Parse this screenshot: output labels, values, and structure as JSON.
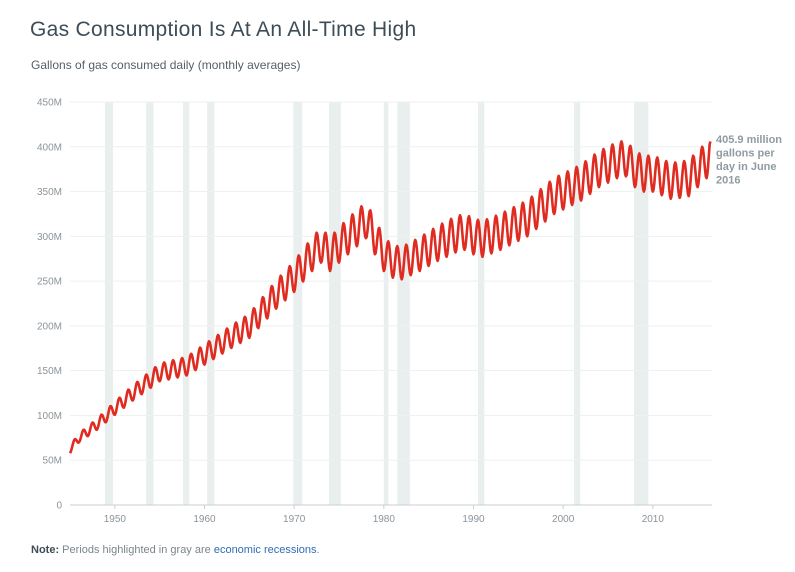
{
  "header": {
    "title": "Gas Consumption Is At An All-Time High",
    "subtitle": "Gallons of gas consumed daily (monthly averages)"
  },
  "note": {
    "label": "Note:",
    "text": "Periods highlighted in gray are",
    "link": "economic recessions",
    "end": "."
  },
  "colors": {
    "line": "#e02b20",
    "recession": "#e8efee",
    "grid": "#eef1f1",
    "annotation": "#8f9ba1"
  },
  "chart_data": {
    "type": "line",
    "title": "Gas Consumption Is At An All-Time High",
    "subtitle": "Gallons of gas consumed daily (monthly averages)",
    "xlim": [
      1945,
      2016.6
    ],
    "ylim": [
      0,
      450
    ],
    "y_unit": "M",
    "yticks": [
      0,
      50,
      100,
      150,
      200,
      250,
      300,
      350,
      400,
      450
    ],
    "ytick_labels": [
      "0",
      "50M",
      "100M",
      "150M",
      "200M",
      "250M",
      "300M",
      "350M",
      "400M",
      "450M"
    ],
    "xticks": [
      1950,
      1960,
      1970,
      1980,
      1990,
      2000,
      2010
    ],
    "xtick_labels": [
      "1950",
      "1960",
      "1970",
      "1980",
      "1990",
      "2000",
      "2010"
    ],
    "grid": true,
    "series": [
      {
        "name": "",
        "frequency": "monthly",
        "seasonal_amplitude_approx": 20,
        "trend": [
          [
            1945,
            62
          ],
          [
            1946,
            75
          ],
          [
            1948,
            90
          ],
          [
            1950,
            108
          ],
          [
            1952,
            125
          ],
          [
            1955,
            148
          ],
          [
            1958,
            155
          ],
          [
            1960,
            168
          ],
          [
            1963,
            188
          ],
          [
            1965,
            200
          ],
          [
            1968,
            235
          ],
          [
            1970,
            255
          ],
          [
            1972,
            280
          ],
          [
            1973,
            290
          ],
          [
            1974,
            280
          ],
          [
            1976,
            300
          ],
          [
            1978,
            318
          ],
          [
            1979,
            300
          ],
          [
            1980,
            280
          ],
          [
            1981,
            272
          ],
          [
            1982,
            270
          ],
          [
            1984,
            280
          ],
          [
            1986,
            292
          ],
          [
            1988,
            302
          ],
          [
            1989,
            305
          ],
          [
            1990,
            300
          ],
          [
            1991,
            297
          ],
          [
            1993,
            305
          ],
          [
            1996,
            320
          ],
          [
            1999,
            345
          ],
          [
            2000,
            350
          ],
          [
            2002,
            360
          ],
          [
            2004,
            375
          ],
          [
            2006,
            385
          ],
          [
            2007,
            387
          ],
          [
            2008,
            375
          ],
          [
            2009,
            370
          ],
          [
            2010,
            370
          ],
          [
            2012,
            362
          ],
          [
            2013,
            363
          ],
          [
            2014,
            365
          ],
          [
            2015,
            375
          ],
          [
            2016,
            385
          ],
          [
            2016.45,
            395
          ]
        ]
      }
    ],
    "recessions": [
      [
        1948.9,
        1949.8
      ],
      [
        1953.5,
        1954.3
      ],
      [
        1957.6,
        1958.3
      ],
      [
        1960.3,
        1961.1
      ],
      [
        1969.9,
        1970.9
      ],
      [
        1973.9,
        1975.2
      ],
      [
        1980.0,
        1980.5
      ],
      [
        1981.5,
        1982.9
      ],
      [
        1990.5,
        1991.2
      ],
      [
        2001.2,
        2001.9
      ],
      [
        2007.9,
        2009.5
      ]
    ],
    "annotation": {
      "lines": [
        "405.9 million",
        "gallons per",
        "day in June",
        "2016"
      ],
      "x": 2016.45,
      "y": 405.9
    }
  }
}
